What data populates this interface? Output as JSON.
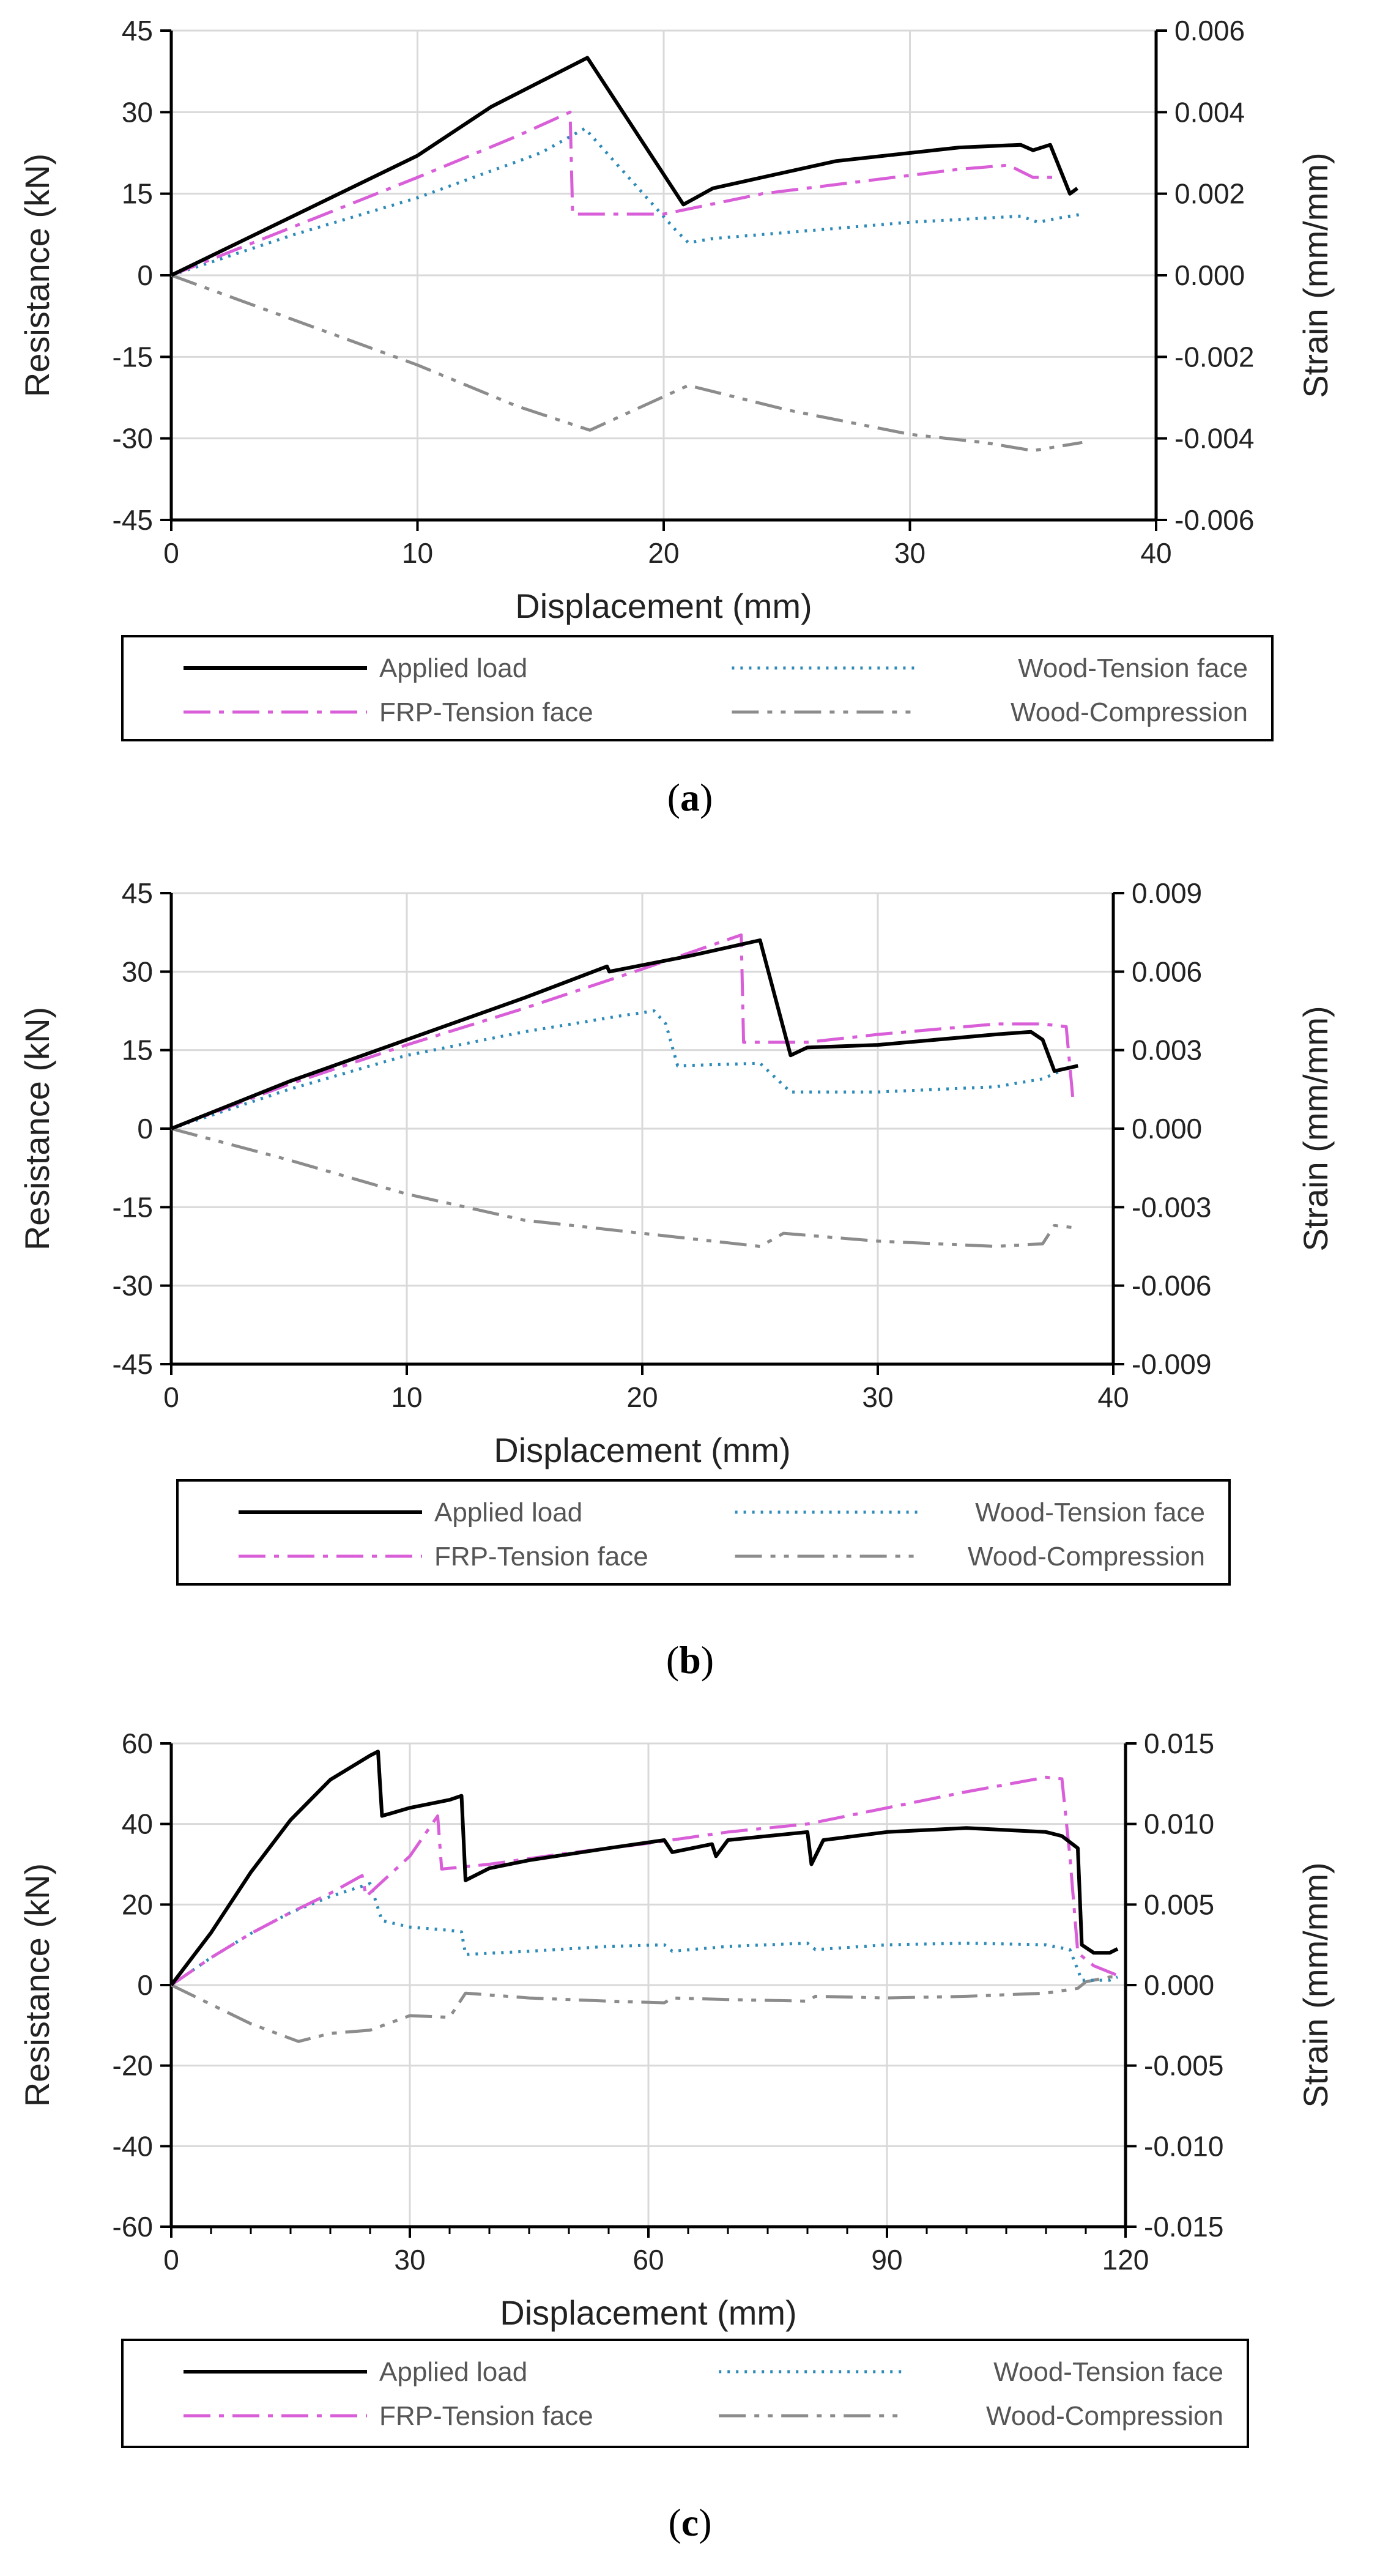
{
  "colors": {
    "applied_load": "#000000",
    "wood_tension": "#2e8bb8",
    "frp_tension": "#d95fd9",
    "wood_compression": "#8c8c8c",
    "grid": "#d9d9d9"
  },
  "chart_data": [
    {
      "type": "line",
      "panel_label": "a",
      "xlabel": "Displacement (mm)",
      "ylabel": "Resistance (kN)",
      "y2label": "Strain (mm/mm)",
      "xlim": [
        0,
        40
      ],
      "ylim": [
        -45,
        45
      ],
      "y2lim": [
        -0.006,
        0.006
      ],
      "x_ticks": [
        0,
        10,
        20,
        30,
        40
      ],
      "x_minor": [],
      "y_ticks": [
        -45,
        -30,
        -15,
        0,
        15,
        30,
        45
      ],
      "y_tick_labels": [
        "-45",
        "-30",
        "-15",
        "0",
        "15",
        "30",
        "45"
      ],
      "y2_tick_labels": [
        "-0.006",
        "-0.004",
        "-0.002",
        "0.000",
        "0.002",
        "0.004",
        "0.006"
      ],
      "legend": [
        "Applied load",
        "Wood-Tension face",
        "FRP-Tension face",
        "Wood-Compression"
      ],
      "series": [
        {
          "name": "Applied load",
          "key": "applied_load",
          "axis": "left",
          "points": [
            [
              0,
              0
            ],
            [
              5,
              11
            ],
            [
              10,
              22
            ],
            [
              13,
              31
            ],
            [
              16.9,
              40
            ],
            [
              20.8,
              13
            ],
            [
              22,
              16
            ],
            [
              27,
              21
            ],
            [
              32,
              23.5
            ],
            [
              34.5,
              24
            ],
            [
              35,
              23
            ],
            [
              35.7,
              24
            ],
            [
              36.5,
              15
            ],
            [
              36.8,
              16
            ]
          ]
        },
        {
          "name": "Wood-Tension face",
          "key": "wood_tension",
          "axis": "right",
          "points": [
            [
              0,
              0
            ],
            [
              5,
              0.001
            ],
            [
              10,
              0.0019
            ],
            [
              15,
              0.003
            ],
            [
              16.8,
              0.0036
            ],
            [
              20.5,
              0.0011
            ],
            [
              21,
              0.0008
            ],
            [
              22,
              0.0009
            ],
            [
              26,
              0.0011
            ],
            [
              30,
              0.0013
            ],
            [
              34.5,
              0.00145
            ],
            [
              35.2,
              0.0013
            ],
            [
              36,
              0.0014
            ],
            [
              37,
              0.0015
            ]
          ]
        },
        {
          "name": "FRP-Tension face",
          "key": "frp_tension",
          "axis": "right",
          "points": [
            [
              0,
              0
            ],
            [
              5,
              0.0012
            ],
            [
              10,
              0.0024
            ],
            [
              14,
              0.0034
            ],
            [
              16.2,
              0.004
            ],
            [
              16.3,
              0.0015
            ],
            [
              20,
              0.0015
            ],
            [
              24,
              0.002
            ],
            [
              28,
              0.0023
            ],
            [
              32,
              0.0026
            ],
            [
              34,
              0.0027
            ],
            [
              35,
              0.0024
            ],
            [
              36,
              0.0024
            ]
          ]
        },
        {
          "name": "Wood-Compression",
          "key": "wood_compression",
          "axis": "right",
          "points": [
            [
              0,
              0
            ],
            [
              5,
              -0.0011
            ],
            [
              10,
              -0.0022
            ],
            [
              14,
              -0.0032
            ],
            [
              17,
              -0.0038
            ],
            [
              21,
              -0.0027
            ],
            [
              25,
              -0.0033
            ],
            [
              30,
              -0.0039
            ],
            [
              33,
              -0.0041
            ],
            [
              35,
              -0.0043
            ],
            [
              37,
              -0.0041
            ]
          ]
        }
      ]
    },
    {
      "type": "line",
      "panel_label": "b",
      "xlabel": "Displacement (mm)",
      "ylabel": "Resistance (kN)",
      "y2label": "Strain (mm/mm)",
      "xlim": [
        0,
        40
      ],
      "ylim": [
        -45,
        45
      ],
      "y2lim": [
        -0.009,
        0.009
      ],
      "x_ticks": [
        0,
        10,
        20,
        30,
        40
      ],
      "x_minor": [],
      "y_ticks": [
        -45,
        -30,
        -15,
        0,
        15,
        30,
        45
      ],
      "y_tick_labels": [
        "-45",
        "-30",
        "-15",
        "0",
        "15",
        "30",
        "45"
      ],
      "y2_tick_labels": [
        "-0.009",
        "-0.006",
        "-0.003",
        "0.000",
        "0.003",
        "0.006",
        "0.009"
      ],
      "legend": [
        "Applied load",
        "Wood-Tension face",
        "FRP-Tension face",
        "Wood-Compression"
      ],
      "series": [
        {
          "name": "Applied load",
          "key": "applied_load",
          "axis": "left",
          "points": [
            [
              0,
              0
            ],
            [
              5,
              9
            ],
            [
              10,
              17
            ],
            [
              15,
              25
            ],
            [
              18.5,
              31
            ],
            [
              18.6,
              30
            ],
            [
              22,
              33
            ],
            [
              25,
              36
            ],
            [
              26.3,
              14
            ],
            [
              27,
              15.5
            ],
            [
              30,
              16
            ],
            [
              35,
              18
            ],
            [
              36.5,
              18.5
            ],
            [
              37,
              17
            ],
            [
              37.5,
              11
            ],
            [
              38.5,
              12
            ]
          ]
        },
        {
          "name": "Wood-Tension face",
          "key": "wood_tension",
          "axis": "right",
          "points": [
            [
              0,
              0
            ],
            [
              5,
              0.0015
            ],
            [
              10,
              0.0028
            ],
            [
              15,
              0.0037
            ],
            [
              19,
              0.0043
            ],
            [
              20.5,
              0.0045
            ],
            [
              21,
              0.004
            ],
            [
              21.5,
              0.0024
            ],
            [
              25,
              0.0025
            ],
            [
              26.3,
              0.0014
            ],
            [
              30,
              0.0014
            ],
            [
              35,
              0.0016
            ],
            [
              37,
              0.0019
            ],
            [
              38,
              0.0023
            ]
          ]
        },
        {
          "name": "FRP-Tension face",
          "key": "frp_tension",
          "axis": "right",
          "points": [
            [
              0,
              0
            ],
            [
              5,
              0.0017
            ],
            [
              10,
              0.0032
            ],
            [
              15,
              0.0046
            ],
            [
              20,
              0.0061
            ],
            [
              24.2,
              0.0074
            ],
            [
              24.3,
              0.0033
            ],
            [
              27,
              0.0033
            ],
            [
              30,
              0.0036
            ],
            [
              35,
              0.004
            ],
            [
              37,
              0.004
            ],
            [
              38,
              0.0039
            ],
            [
              38.3,
              0.001
            ]
          ]
        },
        {
          "name": "Wood-Compression",
          "key": "wood_compression",
          "axis": "right",
          "points": [
            [
              0,
              0
            ],
            [
              5,
              -0.0012
            ],
            [
              10,
              -0.0025
            ],
            [
              15,
              -0.0035
            ],
            [
              19,
              -0.0039
            ],
            [
              25,
              -0.0045
            ],
            [
              26,
              -0.004
            ],
            [
              30,
              -0.0043
            ],
            [
              35,
              -0.0045
            ],
            [
              37,
              -0.0044
            ],
            [
              37.5,
              -0.0037
            ],
            [
              38.5,
              -0.0038
            ]
          ]
        }
      ]
    },
    {
      "type": "line",
      "panel_label": "c",
      "xlabel": "Displacement (mm)",
      "ylabel": "Resistance (kN)",
      "y2label": "Strain (mm/mm)",
      "xlim": [
        0,
        120
      ],
      "ylim": [
        -60,
        60
      ],
      "y2lim": [
        -0.015,
        0.015
      ],
      "x_ticks": [
        0,
        30,
        60,
        90,
        120
      ],
      "x_minor": [
        5,
        10,
        15,
        20,
        25,
        35,
        40,
        45,
        50,
        55,
        65,
        70,
        75,
        80,
        85,
        95,
        100,
        105,
        110,
        115
      ],
      "y_ticks": [
        -60,
        -40,
        -20,
        0,
        20,
        40,
        60
      ],
      "y_tick_labels": [
        "-60",
        "-40",
        "-20",
        "0",
        "20",
        "40",
        "60"
      ],
      "y2_tick_labels": [
        "-0.015",
        "-0.010",
        "-0.005",
        "0.000",
        "0.005",
        "0.010",
        "0.015"
      ],
      "legend": [
        "Applied load",
        "Wood-Tension face",
        "FRP-Tension face",
        "Wood-Compression"
      ],
      "series": [
        {
          "name": "Applied load",
          "key": "applied_load",
          "axis": "left",
          "points": [
            [
              0,
              0
            ],
            [
              5,
              13
            ],
            [
              10,
              28
            ],
            [
              15,
              41
            ],
            [
              20,
              51
            ],
            [
              25,
              57
            ],
            [
              26,
              58
            ],
            [
              26.5,
              42
            ],
            [
              30,
              44
            ],
            [
              35,
              46
            ],
            [
              36.5,
              47
            ],
            [
              37,
              26
            ],
            [
              40,
              29
            ],
            [
              45,
              31
            ],
            [
              55,
              34
            ],
            [
              62,
              36
            ],
            [
              63,
              33
            ],
            [
              68,
              35
            ],
            [
              68.5,
              32
            ],
            [
              70,
              36
            ],
            [
              80,
              38
            ],
            [
              80.5,
              30
            ],
            [
              82,
              36
            ],
            [
              90,
              38
            ],
            [
              100,
              39
            ],
            [
              110,
              38
            ],
            [
              112,
              37
            ],
            [
              114,
              34
            ],
            [
              114.5,
              10
            ],
            [
              116,
              8
            ],
            [
              118,
              8
            ],
            [
              119,
              9
            ]
          ]
        },
        {
          "name": "Wood-Tension face",
          "key": "wood_tension",
          "axis": "right",
          "points": [
            [
              0,
              0
            ],
            [
              5,
              0.0017
            ],
            [
              10,
              0.0032
            ],
            [
              15,
              0.0045
            ],
            [
              20,
              0.0055
            ],
            [
              25,
              0.0063
            ],
            [
              26.5,
              0.004
            ],
            [
              30,
              0.0036
            ],
            [
              35,
              0.0034
            ],
            [
              36.5,
              0.0033
            ],
            [
              37,
              0.0019
            ],
            [
              45,
              0.0021
            ],
            [
              55,
              0.0024
            ],
            [
              62,
              0.0025
            ],
            [
              63,
              0.0021
            ],
            [
              70,
              0.0024
            ],
            [
              80,
              0.0026
            ],
            [
              81,
              0.0022
            ],
            [
              90,
              0.0025
            ],
            [
              100,
              0.0026
            ],
            [
              110,
              0.0025
            ],
            [
              113,
              0.0022
            ],
            [
              114.5,
              0.0003
            ],
            [
              118,
              0.0003
            ],
            [
              119,
              0.0005
            ]
          ]
        },
        {
          "name": "FRP-Tension face",
          "key": "frp_tension",
          "axis": "right",
          "points": [
            [
              0,
              0
            ],
            [
              5,
              0.0017
            ],
            [
              10,
              0.0032
            ],
            [
              15,
              0.0045
            ],
            [
              20,
              0.0057
            ],
            [
              24,
              0.0068
            ],
            [
              24.5,
              0.0055
            ],
            [
              30,
              0.008
            ],
            [
              33.5,
              0.0105
            ],
            [
              34,
              0.0072
            ],
            [
              40,
              0.0075
            ],
            [
              50,
              0.0082
            ],
            [
              60,
              0.0088
            ],
            [
              70,
              0.0095
            ],
            [
              80,
              0.01
            ],
            [
              90,
              0.011
            ],
            [
              100,
              0.012
            ],
            [
              110,
              0.0129
            ],
            [
              112,
              0.0128
            ],
            [
              113,
              0.008
            ],
            [
              114,
              0.002
            ],
            [
              116,
              0.0012
            ],
            [
              118,
              0.0008
            ],
            [
              119,
              0.0006
            ]
          ]
        },
        {
          "name": "Wood-Compression",
          "key": "wood_compression",
          "axis": "right",
          "points": [
            [
              0,
              0
            ],
            [
              5,
              -0.0012
            ],
            [
              10,
              -0.0024
            ],
            [
              16,
              -0.0035
            ],
            [
              20,
              -0.003
            ],
            [
              25,
              -0.0028
            ],
            [
              30,
              -0.0019
            ],
            [
              35,
              -0.002
            ],
            [
              37,
              -0.0005
            ],
            [
              45,
              -0.0008
            ],
            [
              55,
              -0.001
            ],
            [
              62,
              -0.0011
            ],
            [
              63,
              -0.0008
            ],
            [
              70,
              -0.0009
            ],
            [
              80,
              -0.001
            ],
            [
              81,
              -0.0007
            ],
            [
              90,
              -0.0008
            ],
            [
              100,
              -0.0007
            ],
            [
              110,
              -0.0005
            ],
            [
              114,
              -0.0002
            ],
            [
              115,
              0.0002
            ],
            [
              118,
              0.0005
            ],
            [
              119,
              0.0005
            ]
          ]
        }
      ]
    }
  ]
}
